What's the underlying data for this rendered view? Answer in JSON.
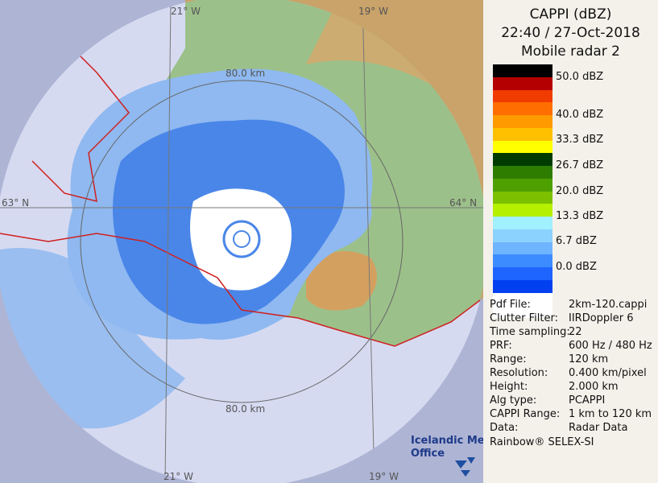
{
  "map": {
    "grid_labels": [
      "21° W",
      "19° W",
      "21° W",
      "19° W",
      "64° N",
      "63° N"
    ],
    "ring_labels": [
      "80.0 km",
      "80.0 km"
    ],
    "logo": [
      "Icelandic Met",
      "Office"
    ]
  },
  "panel": {
    "title": [
      "CAPPI (dBZ)",
      "22:40 / 27-Oct-2018",
      "Mobile radar 2"
    ],
    "scale_colors": [
      "#000000",
      "#b40000",
      "#f03c00",
      "#ff6e00",
      "#ff9a00",
      "#ffc000",
      "#ffff00",
      "#003c00",
      "#2e7d00",
      "#4ea000",
      "#7cc000",
      "#b4f000",
      "#a0f0ff",
      "#8cd2ff",
      "#6eb4ff",
      "#3c8cff",
      "#1e64ff",
      "#0040f0",
      "#ffffff"
    ],
    "scale_labels": [
      "50.0 dBZ",
      "40.0 dBZ",
      "33.3 dBZ",
      "26.7 dBZ",
      "20.0 dBZ",
      "13.3 dBZ",
      "6.7 dBZ",
      "0.0 dBZ"
    ],
    "info": [
      [
        "Pdf File:",
        "2km-120.cappi"
      ],
      [
        "Clutter Filter:",
        "IIRDoppler 6"
      ],
      [
        "Time sampling:",
        "22"
      ],
      [
        "PRF:",
        "600 Hz / 480 Hz"
      ],
      [
        "Range:",
        "120 km"
      ],
      [
        "Resolution:",
        "0.400 km/pixel"
      ],
      [
        "Height:",
        "2.000 km"
      ],
      [
        "Alg type:",
        "PCAPPI"
      ],
      [
        "CAPPI Range:",
        "1 km to 120 km"
      ],
      [
        "Data:",
        "Radar Data"
      ]
    ],
    "footer": "Rainbow® SELEX-SI"
  }
}
